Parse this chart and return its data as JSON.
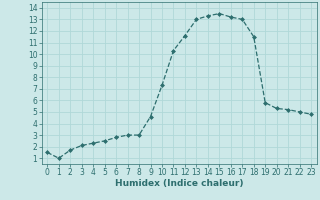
{
  "x": [
    0,
    1,
    2,
    3,
    4,
    5,
    6,
    7,
    8,
    9,
    10,
    11,
    12,
    13,
    14,
    15,
    16,
    17,
    18,
    19,
    20,
    21,
    22,
    23
  ],
  "y": [
    1.5,
    1.0,
    1.7,
    2.1,
    2.3,
    2.5,
    2.8,
    3.0,
    3.0,
    4.6,
    7.3,
    10.3,
    11.6,
    13.0,
    13.3,
    13.5,
    13.2,
    13.0,
    11.5,
    5.8,
    5.3,
    5.2,
    5.0,
    4.8
  ],
  "xlabel": "Humidex (Indice chaleur)",
  "line_color": "#2d6e6e",
  "marker": "D",
  "marker_size": 2.0,
  "bg_color": "#cce8e8",
  "grid_color": "#b0d8d8",
  "xlim": [
    -0.5,
    23.5
  ],
  "ylim": [
    0.5,
    14.5
  ],
  "yticks": [
    1,
    2,
    3,
    4,
    5,
    6,
    7,
    8,
    9,
    10,
    11,
    12,
    13,
    14
  ],
  "xticks": [
    0,
    1,
    2,
    3,
    4,
    5,
    6,
    7,
    8,
    9,
    10,
    11,
    12,
    13,
    14,
    15,
    16,
    17,
    18,
    19,
    20,
    21,
    22,
    23
  ],
  "tick_fontsize": 5.5,
  "xlabel_fontsize": 6.5
}
